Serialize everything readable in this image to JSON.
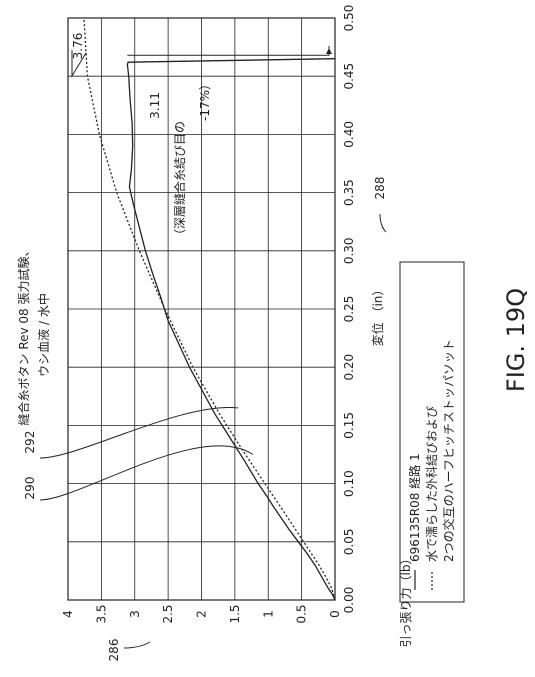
{
  "figure": {
    "label": "FIG. 19Q",
    "ref_ylabel": "286",
    "ref_xlabel": "288",
    "ref_curve_a": "290",
    "ref_curve_b": "292"
  },
  "chart_data": {
    "type": "line",
    "title": "縫合糸ボタン Rev 08 張力試験、",
    "subtitle": "ウシ血液 / 水中",
    "xlabel": "変位 （in）",
    "ylabel": "引っ張り力（lb）",
    "xlim": [
      0,
      0.5
    ],
    "ylim": [
      0,
      4
    ],
    "x_ticks": [
      "0.00",
      "0.05",
      "0.10",
      "0.15",
      "0.20",
      "0.25",
      "0.30",
      "0.35",
      "0.40",
      "0.45",
      "0.50"
    ],
    "y_ticks": [
      "0",
      "0.5",
      "1",
      "1.5",
      "2",
      "2.5",
      "3",
      "3.5",
      "4"
    ],
    "grid": true,
    "legend": {
      "placement": "bottom-right",
      "entries": [
        {
          "label": "696135R08 経路 1",
          "style": "solid"
        },
        {
          "label": "水で濡らした外科結びおよび",
          "style": "dotted"
        },
        {
          "label": "2つの交互のハーフヒッチストッパソット",
          "style": "none"
        }
      ]
    },
    "annotations": [
      {
        "text": "3.76",
        "x": 0.5,
        "y": 3.76
      },
      {
        "text": "3.11",
        "x": 0.43,
        "y": 3.11
      },
      {
        "text": "（深層縫合糸結び目の",
        "x": 0.38,
        "y": 3.0
      },
      {
        "text": "-17%）",
        "x": 0.43,
        "y": 2.9
      }
    ],
    "series": [
      {
        "name": "696135R08 経路 1",
        "style": "solid",
        "x": [
          0,
          0.005,
          0.01,
          0.02,
          0.03,
          0.04,
          0.05,
          0.06,
          0.07,
          0.08,
          0.09,
          0.1,
          0.12,
          0.14,
          0.16,
          0.18,
          0.2,
          0.22,
          0.24,
          0.26,
          0.28,
          0.3,
          0.32,
          0.34,
          0.355,
          0.37,
          0.39,
          0.41,
          0.43,
          0.45,
          0.46,
          0.462,
          0.465
        ],
        "y": [
          0,
          0.04,
          0.1,
          0.2,
          0.3,
          0.42,
          0.55,
          0.68,
          0.8,
          0.92,
          1.03,
          1.15,
          1.36,
          1.58,
          1.8,
          1.99,
          2.18,
          2.34,
          2.5,
          2.61,
          2.73,
          2.84,
          2.93,
          3.02,
          3.08,
          3.05,
          3.03,
          3.04,
          3.07,
          3.09,
          3.11,
          3.1,
          0.0
        ]
      },
      {
        "name": "水で濡らした外科結びおよび",
        "style": "dotted",
        "x": [
          0,
          0.01,
          0.02,
          0.03,
          0.05,
          0.07,
          0.1,
          0.13,
          0.16,
          0.2,
          0.25,
          0.3,
          0.35,
          0.4,
          0.45,
          0.5
        ],
        "y": [
          0,
          0.05,
          0.14,
          0.24,
          0.47,
          0.7,
          1.05,
          1.4,
          1.73,
          2.13,
          2.55,
          2.93,
          3.27,
          3.53,
          3.71,
          3.76
        ]
      }
    ]
  }
}
